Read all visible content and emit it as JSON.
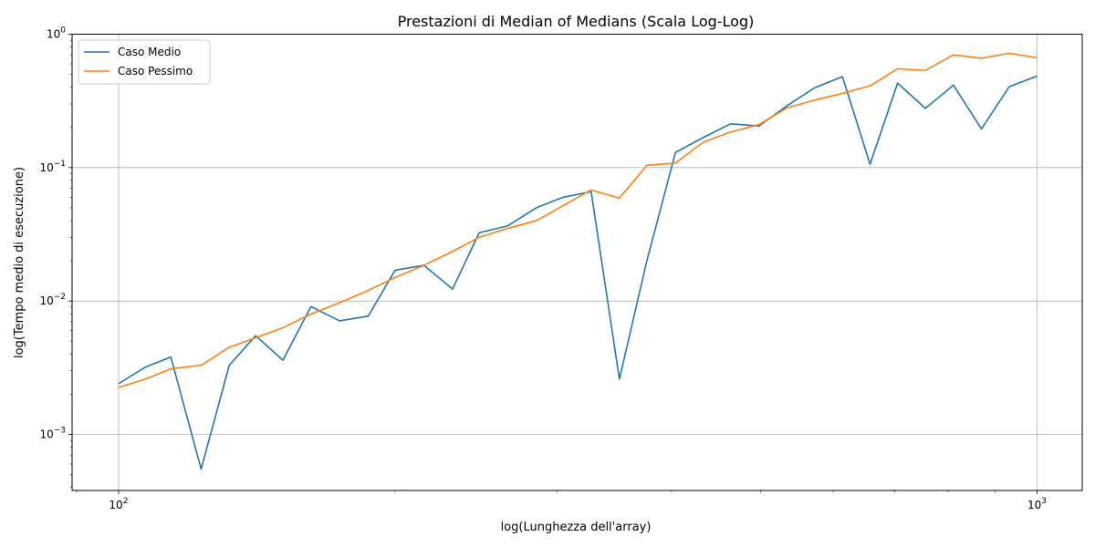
{
  "chart_data": {
    "type": "line",
    "title": "Prestazioni di Median of Medians (Scala Log-Log)",
    "xlabel": "log(Lunghezza dell'array)",
    "ylabel": "log(Tempo medio di esecuzione)",
    "xscale": "log",
    "yscale": "log",
    "xlim": [
      89,
      1120
    ],
    "ylim": [
      0.00038,
      1.0
    ],
    "grid": true,
    "legend_position": "top-left",
    "x_ticks": [
      {
        "value": 100,
        "base": "10",
        "exp": "2"
      },
      {
        "value": 1000,
        "base": "10",
        "exp": "3"
      }
    ],
    "y_ticks": [
      {
        "value": 0.001,
        "base": "10",
        "exp": "−3"
      },
      {
        "value": 0.01,
        "base": "10",
        "exp": "−2"
      },
      {
        "value": 0.1,
        "base": "10",
        "exp": "−1"
      },
      {
        "value": 1,
        "base": "10",
        "exp": "0"
      }
    ],
    "x": [
      100,
      107,
      114,
      123,
      132,
      141,
      151,
      162,
      174,
      187,
      200,
      215,
      231,
      247,
      265,
      285,
      305,
      327,
      351,
      376,
      404,
      433,
      464,
      498,
      534,
      572,
      614,
      658,
      705,
      756,
      811,
      870,
      933,
      1000
    ],
    "series": [
      {
        "name": "Caso Medio",
        "color": "#1f77b4",
        "values": [
          0.0024,
          0.0032,
          0.0038,
          0.00055,
          0.0033,
          0.0055,
          0.0036,
          0.0091,
          0.0071,
          0.0077,
          0.017,
          0.0185,
          0.0123,
          0.0325,
          0.0365,
          0.05,
          0.06,
          0.066,
          0.0026,
          0.02,
          0.13,
          0.168,
          0.213,
          0.205,
          0.29,
          0.395,
          0.48,
          0.106,
          0.43,
          0.278,
          0.415,
          0.195,
          0.405,
          0.485
        ]
      },
      {
        "name": "Caso Pessimo",
        "color": "#ff7f0e",
        "values": [
          0.00225,
          0.0026,
          0.0031,
          0.0033,
          0.0045,
          0.0053,
          0.0063,
          0.008,
          0.0097,
          0.012,
          0.015,
          0.0185,
          0.0235,
          0.03,
          0.035,
          0.04,
          0.052,
          0.068,
          0.059,
          0.104,
          0.108,
          0.155,
          0.185,
          0.21,
          0.28,
          0.32,
          0.36,
          0.41,
          0.55,
          0.535,
          0.7,
          0.66,
          0.72,
          0.665
        ]
      }
    ]
  }
}
